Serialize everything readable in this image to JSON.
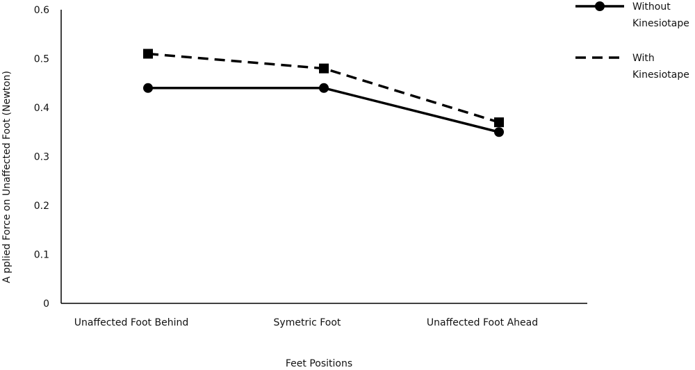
{
  "chart_data": {
    "type": "line",
    "title": "",
    "xlabel": "Feet Positions",
    "ylabel": "A pplied Force on Unaffected Foot (Newton)",
    "categories": [
      "Unaffected Foot Behind",
      "Symetric Foot",
      "Unaffected Foot Ahead"
    ],
    "ylim": [
      0,
      0.6
    ],
    "yticks": [
      "0",
      "0.1",
      "0.2",
      "0.3",
      "0.4",
      "0.5",
      "0.6"
    ],
    "grid": false,
    "legend_position": "top-right",
    "series": [
      {
        "name": "Without Kinesiotape",
        "legend_lines": [
          "Without",
          "Kinesiotape"
        ],
        "values": [
          0.44,
          0.44,
          0.35
        ],
        "line_style": "solid",
        "marker": "circle",
        "color": "#000000"
      },
      {
        "name": "With Kinesiotape",
        "legend_lines": [
          "With",
          "Kinesiotape"
        ],
        "values": [
          0.51,
          0.48,
          0.37
        ],
        "line_style": "dashed",
        "marker": "square",
        "color": "#000000"
      }
    ]
  }
}
